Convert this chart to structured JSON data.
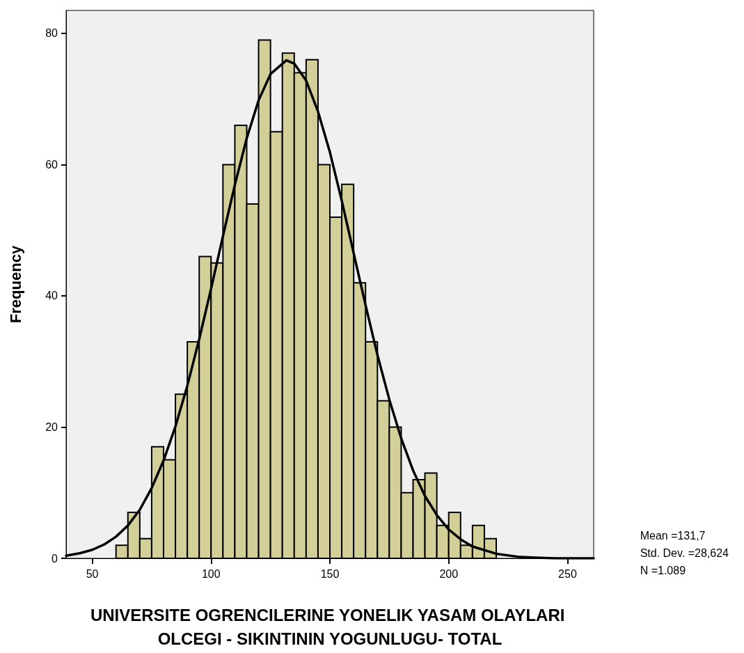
{
  "chart_data": {
    "type": "histogram",
    "xlabel": "UNIVERSITE OGRENCILERINE YONELIK YASAM OLAYLARI OLCEGI - SIKINTININ YOGUNLUGU- TOTAL",
    "ylabel": "Frequency",
    "xlim": [
      39,
      261
    ],
    "xticks": [
      50,
      100,
      150,
      200,
      250
    ],
    "ylim": [
      0,
      83.5
    ],
    "yticks": [
      0,
      20,
      40,
      60,
      80
    ],
    "grid": false,
    "annotations": [
      "Mean =131,7",
      "Std. Dev. =28,624",
      "N =1.089"
    ],
    "series": [
      {
        "type": "histogram",
        "color": "#d3cf99",
        "bins": [
          60,
          65,
          70,
          75,
          80,
          85,
          90,
          95,
          100,
          105,
          110,
          115,
          120,
          125,
          130,
          135,
          140,
          145,
          150,
          155,
          160,
          165,
          170,
          175,
          180,
          185,
          190,
          195,
          200,
          205,
          210,
          215,
          220
        ],
        "values": [
          2,
          7,
          3,
          17,
          15,
          25,
          33,
          46,
          45,
          60,
          66,
          54,
          79,
          65,
          77,
          74,
          76,
          60,
          52,
          57,
          42,
          33,
          24,
          20,
          10,
          12,
          13,
          5,
          7,
          2,
          5,
          3
        ]
      },
      {
        "type": "line",
        "color": "#000000",
        "marker": "none",
        "x": [
          39,
          45,
          50,
          55,
          60,
          65,
          70,
          75,
          80,
          85,
          90,
          95,
          100,
          105,
          110,
          115,
          120,
          125,
          131.7,
          135,
          140,
          145,
          150,
          155,
          160,
          165,
          170,
          175,
          180,
          185,
          190,
          195,
          200,
          205,
          210,
          220,
          230,
          245,
          261
        ],
        "values": [
          0.4,
          0.8,
          1.3,
          2.1,
          3.3,
          5.0,
          7.4,
          10.7,
          14.9,
          20.1,
          26.3,
          33.4,
          41.1,
          49.1,
          56.9,
          64.0,
          69.8,
          73.8,
          75.9,
          75.4,
          72.8,
          68.1,
          61.9,
          54.5,
          46.5,
          38.6,
          31.0,
          24.2,
          18.3,
          13.4,
          9.5,
          6.6,
          4.4,
          2.9,
          1.8,
          0.7,
          0.2,
          0.0,
          0.0
        ]
      }
    ]
  }
}
